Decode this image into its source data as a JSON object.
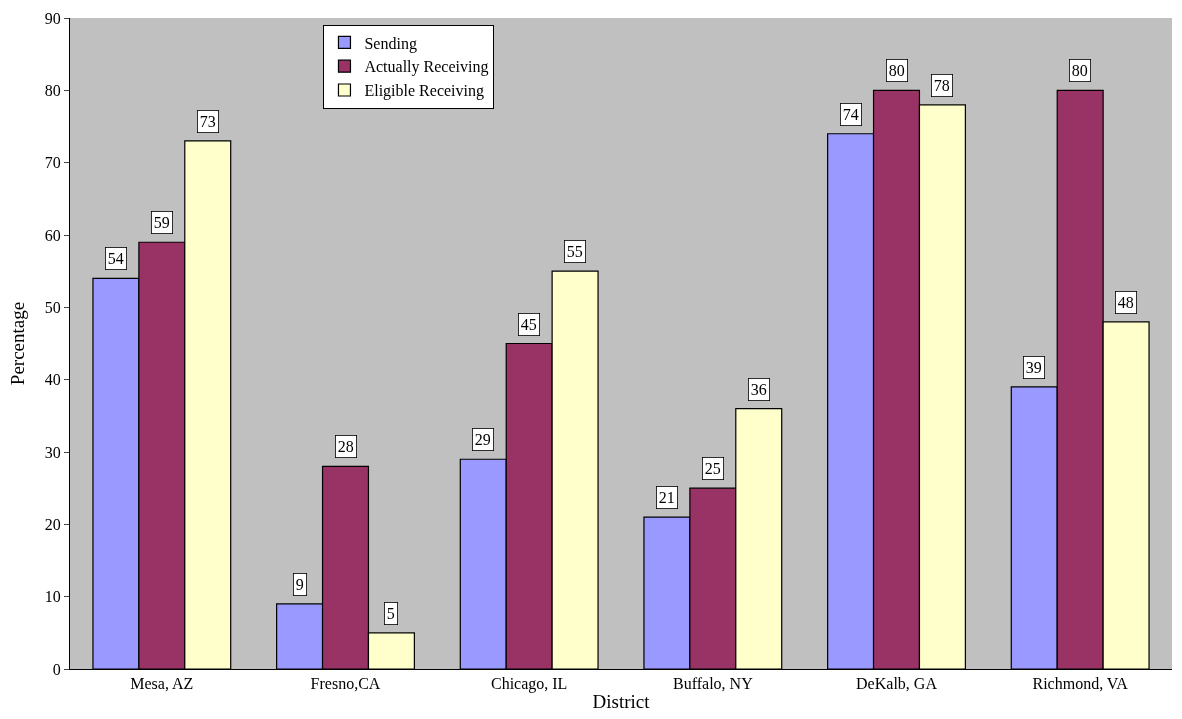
{
  "chart_data": {
    "type": "bar",
    "xlabel": "District",
    "ylabel": "Percentage",
    "categories": [
      "Mesa, AZ",
      "Fresno,CA",
      "Chicago, IL",
      "Buffalo, NY",
      "DeKalb, GA",
      "Richmond, VA"
    ],
    "series": [
      {
        "name": "Sending",
        "color": "#9999ff",
        "values": [
          54,
          9,
          29,
          21,
          74,
          39
        ]
      },
      {
        "name": "Actually Receiving",
        "color": "#993366",
        "values": [
          59,
          28,
          45,
          25,
          80,
          80
        ]
      },
      {
        "name": "Eligible Receiving",
        "color": "#ffffcc",
        "values": [
          73,
          5,
          55,
          36,
          78,
          48
        ]
      }
    ],
    "ylim": [
      0,
      90
    ],
    "yticks": [
      0,
      10,
      20,
      30,
      40,
      50,
      60,
      70,
      80,
      90
    ],
    "data_labels": true,
    "legend": "top left",
    "grid": false
  }
}
